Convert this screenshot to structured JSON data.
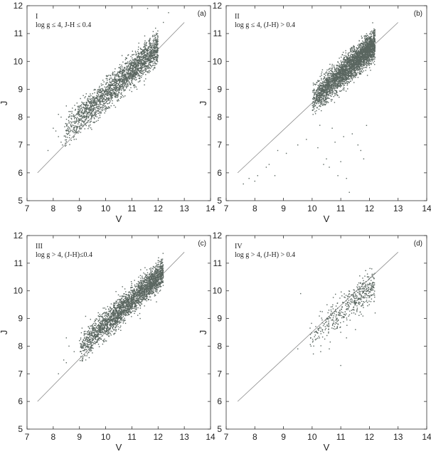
{
  "chart_data": [
    {
      "type": "scatter",
      "panel_letter": "(a)",
      "roman": "I",
      "condition": "log g ≤ 4, J-H ≤ 0.4",
      "xlabel": "V",
      "ylabel": "J",
      "xlim": [
        7,
        14
      ],
      "ylim": [
        5,
        12
      ],
      "xticks": [
        "7",
        "8",
        "9",
        "10",
        "11",
        "12",
        "13",
        "14"
      ],
      "yticks": [
        "5",
        "6",
        "7",
        "8",
        "9",
        "10",
        "11",
        "12"
      ],
      "reference_line": {
        "x": [
          7.4,
          13.0
        ],
        "y": [
          6.0,
          11.4
        ]
      },
      "point_color": "#5a6660",
      "cloud": {
        "n": 2200,
        "v_range": [
          8.4,
          12.0
        ],
        "intercept": 0.3,
        "slope": 0.85,
        "spread": 0.28
      },
      "points": [
        {
          "x": 7.8,
          "y": 6.8
        },
        {
          "x": 8.0,
          "y": 7.6
        },
        {
          "x": 8.1,
          "y": 7.5
        },
        {
          "x": 8.2,
          "y": 7.3
        },
        {
          "x": 8.3,
          "y": 7.1
        },
        {
          "x": 8.35,
          "y": 7.0
        },
        {
          "x": 8.3,
          "y": 8.0
        },
        {
          "x": 8.2,
          "y": 8.1
        },
        {
          "x": 8.6,
          "y": 8.2
        },
        {
          "x": 8.8,
          "y": 7.2
        },
        {
          "x": 9.0,
          "y": 7.6
        },
        {
          "x": 8.5,
          "y": 8.4
        },
        {
          "x": 12.4,
          "y": 11.75
        },
        {
          "x": 12.2,
          "y": 11.4
        },
        {
          "x": 11.6,
          "y": 11.9
        }
      ]
    },
    {
      "type": "scatter",
      "panel_letter": "(b)",
      "roman": "II",
      "condition": "log g ≤ 4, (J-H) > 0.4",
      "xlabel": "V",
      "ylabel": "J",
      "xlim": [
        7,
        14
      ],
      "ylim": [
        5,
        12
      ],
      "xticks": [
        "7",
        "8",
        "9",
        "10",
        "11",
        "12",
        "13",
        "14"
      ],
      "yticks": [
        "5",
        "6",
        "7",
        "8",
        "9",
        "10",
        "11",
        "12"
      ],
      "reference_line": {
        "x": [
          7.4,
          13.0
        ],
        "y": [
          6.0,
          11.4
        ]
      },
      "point_color": "#5a6660",
      "cloud": {
        "n": 3300,
        "v_range": [
          10.0,
          12.2
        ],
        "intercept": -0.6,
        "slope": 0.92,
        "spread": 0.26
      },
      "points": [
        {
          "x": 7.6,
          "y": 5.6
        },
        {
          "x": 7.8,
          "y": 5.8
        },
        {
          "x": 8.0,
          "y": 5.7
        },
        {
          "x": 8.1,
          "y": 5.9
        },
        {
          "x": 8.4,
          "y": 6.2
        },
        {
          "x": 8.5,
          "y": 6.3
        },
        {
          "x": 8.7,
          "y": 5.9
        },
        {
          "x": 8.8,
          "y": 6.8
        },
        {
          "x": 9.1,
          "y": 6.7
        },
        {
          "x": 9.5,
          "y": 7.0
        },
        {
          "x": 9.8,
          "y": 7.2
        },
        {
          "x": 10.2,
          "y": 6.9
        },
        {
          "x": 10.4,
          "y": 6.3
        },
        {
          "x": 10.5,
          "y": 6.5
        },
        {
          "x": 10.6,
          "y": 6.2
        },
        {
          "x": 10.9,
          "y": 5.9
        },
        {
          "x": 11.0,
          "y": 6.4
        },
        {
          "x": 11.2,
          "y": 5.8
        },
        {
          "x": 11.3,
          "y": 5.3
        },
        {
          "x": 11.7,
          "y": 6.8
        },
        {
          "x": 11.8,
          "y": 6.5
        },
        {
          "x": 11.6,
          "y": 7.0
        },
        {
          "x": 10.8,
          "y": 7.1
        },
        {
          "x": 11.1,
          "y": 7.3
        },
        {
          "x": 10.7,
          "y": 7.6
        },
        {
          "x": 11.4,
          "y": 7.4
        },
        {
          "x": 11.9,
          "y": 7.7
        }
      ]
    },
    {
      "type": "scatter",
      "panel_letter": "(c)",
      "roman": "III",
      "condition": "log g > 4, (J-H)≤0.4",
      "xlabel": "V",
      "ylabel": "J",
      "xlim": [
        7,
        14
      ],
      "ylim": [
        5,
        12
      ],
      "xticks": [
        "7",
        "8",
        "9",
        "10",
        "11",
        "12",
        "13",
        "14"
      ],
      "yticks": [
        "5",
        "6",
        "7",
        "8",
        "9",
        "10",
        "11",
        "12"
      ],
      "reference_line": {
        "x": [
          7.4,
          13.0
        ],
        "y": [
          6.0,
          11.4
        ]
      },
      "point_color": "#5a6660",
      "cloud": {
        "n": 2600,
        "v_range": [
          9.0,
          12.2
        ],
        "intercept": 0.3,
        "slope": 0.85,
        "spread": 0.25
      },
      "points": [
        {
          "x": 8.2,
          "y": 7.0
        },
        {
          "x": 8.4,
          "y": 7.5
        },
        {
          "x": 8.5,
          "y": 7.4
        },
        {
          "x": 8.6,
          "y": 8.0
        },
        {
          "x": 8.5,
          "y": 8.3
        },
        {
          "x": 8.8,
          "y": 7.8
        },
        {
          "x": 9.1,
          "y": 7.5
        },
        {
          "x": 9.0,
          "y": 8.2
        }
      ]
    },
    {
      "type": "scatter",
      "panel_letter": "(d)",
      "roman": "IV",
      "condition": "log g > 4, (J-H) > 0.4",
      "xlabel": "V",
      "ylabel": "J",
      "xlim": [
        7,
        14
      ],
      "ylim": [
        5,
        12
      ],
      "xticks": [
        "7",
        "8",
        "9",
        "10",
        "11",
        "12",
        "13",
        "14"
      ],
      "yticks": [
        "5",
        "6",
        "7",
        "8",
        "9",
        "10",
        "11",
        "12"
      ],
      "reference_line": {
        "x": [
          7.4,
          13.0
        ],
        "y": [
          6.0,
          11.4
        ]
      },
      "point_color": "#5a6660",
      "cloud": {
        "n": 480,
        "v_range": [
          9.9,
          12.2
        ],
        "intercept": -0.1,
        "slope": 0.85,
        "spread": 0.3
      },
      "points": [
        {
          "x": 9.6,
          "y": 9.9
        },
        {
          "x": 9.5,
          "y": 7.9
        },
        {
          "x": 11.0,
          "y": 7.3
        },
        {
          "x": 10.3,
          "y": 7.8
        },
        {
          "x": 11.2,
          "y": 8.3
        },
        {
          "x": 11.0,
          "y": 8.5
        },
        {
          "x": 12.2,
          "y": 9.2
        },
        {
          "x": 10.6,
          "y": 7.9
        }
      ]
    }
  ]
}
